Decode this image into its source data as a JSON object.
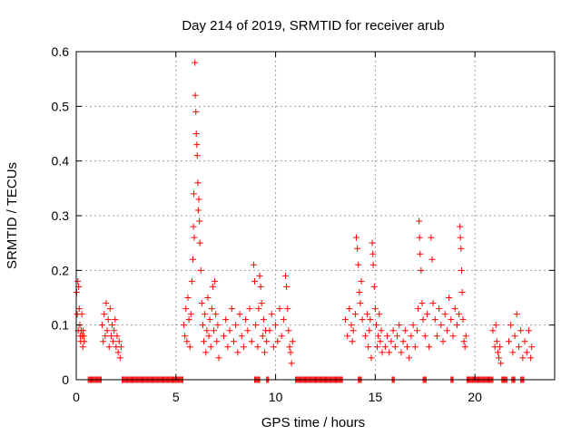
{
  "chart_data": {
    "type": "scatter",
    "title": "Day 214 of 2019, SRMTID for receiver arub",
    "xlabel": "GPS time / hours",
    "ylabel": "SRMTID / TECUs",
    "xlim": [
      0,
      24
    ],
    "ylim": [
      0,
      0.6
    ],
    "x_ticks": [
      {
        "value": 0,
        "label": "0"
      },
      {
        "value": 5,
        "label": "5"
      },
      {
        "value": 10,
        "label": "10"
      },
      {
        "value": 15,
        "label": "15"
      },
      {
        "value": 20,
        "label": "20"
      }
    ],
    "y_ticks": [
      {
        "value": 0,
        "label": "0"
      },
      {
        "value": 0.1,
        "label": "0.1"
      },
      {
        "value": 0.2,
        "label": "0.2"
      },
      {
        "value": 0.3,
        "label": "0.3"
      },
      {
        "value": 0.4,
        "label": "0.4"
      },
      {
        "value": 0.5,
        "label": "0.5"
      },
      {
        "value": 0.6,
        "label": "0.6"
      }
    ],
    "grid": true,
    "marker": "+",
    "color": "#ff0000",
    "series": [
      {
        "name": "SRMTID",
        "points": [
          [
            0.02,
            0.16
          ],
          [
            0.05,
            0.12
          ],
          [
            0.08,
            0.18
          ],
          [
            0.1,
            0.09
          ],
          [
            0.12,
            0.17
          ],
          [
            0.15,
            0.13
          ],
          [
            0.18,
            0.1
          ],
          [
            0.2,
            0.08
          ],
          [
            0.22,
            0.07
          ],
          [
            0.25,
            0.09
          ],
          [
            0.28,
            0.12
          ],
          [
            0.3,
            0.08
          ],
          [
            0.33,
            0.06
          ],
          [
            0.35,
            0.09
          ],
          [
            0.38,
            0.08
          ],
          [
            0.4,
            0.07
          ],
          [
            1.3,
            0.1
          ],
          [
            1.35,
            0.07
          ],
          [
            1.4,
            0.12
          ],
          [
            1.45,
            0.08
          ],
          [
            1.5,
            0.14
          ],
          [
            1.55,
            0.09
          ],
          [
            1.6,
            0.11
          ],
          [
            1.65,
            0.06
          ],
          [
            1.7,
            0.13
          ],
          [
            1.75,
            0.08
          ],
          [
            1.8,
            0.1
          ],
          [
            1.85,
            0.07
          ],
          [
            1.9,
            0.09
          ],
          [
            1.95,
            0.11
          ],
          [
            2.0,
            0.06
          ],
          [
            2.05,
            0.08
          ],
          [
            2.1,
            0.05
          ],
          [
            2.15,
            0.07
          ],
          [
            2.2,
            0.04
          ],
          [
            2.25,
            0.06
          ],
          [
            5.4,
            0.1
          ],
          [
            5.45,
            0.08
          ],
          [
            5.5,
            0.13
          ],
          [
            5.55,
            0.07
          ],
          [
            5.6,
            0.15
          ],
          [
            5.65,
            0.11
          ],
          [
            5.7,
            0.06
          ],
          [
            5.75,
            0.12
          ],
          [
            5.8,
            0.18
          ],
          [
            5.85,
            0.22
          ],
          [
            5.88,
            0.28
          ],
          [
            5.9,
            0.34
          ],
          [
            5.92,
            0.26
          ],
          [
            5.95,
            0.58
          ],
          [
            5.97,
            0.52
          ],
          [
            6.0,
            0.49
          ],
          [
            6.02,
            0.45
          ],
          [
            6.05,
            0.43
          ],
          [
            6.07,
            0.41
          ],
          [
            6.1,
            0.36
          ],
          [
            6.12,
            0.31
          ],
          [
            6.15,
            0.33
          ],
          [
            6.18,
            0.29
          ],
          [
            6.2,
            0.25
          ],
          [
            6.25,
            0.2
          ],
          [
            6.3,
            0.14
          ],
          [
            6.35,
            0.1
          ],
          [
            6.4,
            0.07
          ],
          [
            6.45,
            0.12
          ],
          [
            6.5,
            0.05
          ],
          [
            6.55,
            0.09
          ],
          [
            6.6,
            0.15
          ],
          [
            6.65,
            0.08
          ],
          [
            6.7,
            0.11
          ],
          [
            6.75,
            0.06
          ],
          [
            6.8,
            0.13
          ],
          [
            6.85,
            0.17
          ],
          [
            6.9,
            0.09
          ],
          [
            6.95,
            0.18
          ],
          [
            7.0,
            0.12
          ],
          [
            7.05,
            0.07
          ],
          [
            7.1,
            0.1
          ],
          [
            7.15,
            0.04
          ],
          [
            7.4,
            0.08
          ],
          [
            7.5,
            0.11
          ],
          [
            7.6,
            0.06
          ],
          [
            7.7,
            0.09
          ],
          [
            7.8,
            0.13
          ],
          [
            7.9,
            0.07
          ],
          [
            8.0,
            0.1
          ],
          [
            8.1,
            0.05
          ],
          [
            8.2,
            0.12
          ],
          [
            8.3,
            0.08
          ],
          [
            8.4,
            0.06
          ],
          [
            8.5,
            0.11
          ],
          [
            8.6,
            0.09
          ],
          [
            8.7,
            0.13
          ],
          [
            8.8,
            0.07
          ],
          [
            8.9,
            0.21
          ],
          [
            8.95,
            0.18
          ],
          [
            9.0,
            0.1
          ],
          [
            9.1,
            0.06
          ],
          [
            9.15,
            0.13
          ],
          [
            9.2,
            0.19
          ],
          [
            9.25,
            0.17
          ],
          [
            9.3,
            0.14
          ],
          [
            9.35,
            0.08
          ],
          [
            9.4,
            0.11
          ],
          [
            9.45,
            0.05
          ],
          [
            9.5,
            0.09
          ],
          [
            9.55,
            0.07
          ],
          [
            9.7,
            0.09
          ],
          [
            9.8,
            0.12
          ],
          [
            9.9,
            0.06
          ],
          [
            10.0,
            0.1
          ],
          [
            10.1,
            0.07
          ],
          [
            10.2,
            0.13
          ],
          [
            10.3,
            0.08
          ],
          [
            10.4,
            0.11
          ],
          [
            10.5,
            0.19
          ],
          [
            10.55,
            0.17
          ],
          [
            10.6,
            0.13
          ],
          [
            10.65,
            0.09
          ],
          [
            10.7,
            0.06
          ],
          [
            10.75,
            0.05
          ],
          [
            10.8,
            0.03
          ],
          [
            10.85,
            0.07
          ],
          [
            13.5,
            0.11
          ],
          [
            13.6,
            0.08
          ],
          [
            13.7,
            0.13
          ],
          [
            13.8,
            0.1
          ],
          [
            13.85,
            0.07
          ],
          [
            13.9,
            0.09
          ],
          [
            14.0,
            0.12
          ],
          [
            14.05,
            0.26
          ],
          [
            14.1,
            0.24
          ],
          [
            14.15,
            0.21
          ],
          [
            14.2,
            0.16
          ],
          [
            14.25,
            0.14
          ],
          [
            14.3,
            0.18
          ],
          [
            14.35,
            0.11
          ],
          [
            14.5,
            0.08
          ],
          [
            14.6,
            0.12
          ],
          [
            14.65,
            0.06
          ],
          [
            14.7,
            0.09
          ],
          [
            14.75,
            0.11
          ],
          [
            14.8,
            0.04
          ],
          [
            14.85,
            0.25
          ],
          [
            14.88,
            0.23
          ],
          [
            14.9,
            0.21
          ],
          [
            14.95,
            0.17
          ],
          [
            15.0,
            0.13
          ],
          [
            15.05,
            0.1
          ],
          [
            15.1,
            0.06
          ],
          [
            15.15,
            0.08
          ],
          [
            15.2,
            0.12
          ],
          [
            15.25,
            0.07
          ],
          [
            15.3,
            0.09
          ],
          [
            15.35,
            0.05
          ],
          [
            15.5,
            0.06
          ],
          [
            15.6,
            0.08
          ],
          [
            15.7,
            0.05
          ],
          [
            15.8,
            0.07
          ],
          [
            15.9,
            0.09
          ],
          [
            16.0,
            0.06
          ],
          [
            16.1,
            0.08
          ],
          [
            16.2,
            0.1
          ],
          [
            16.3,
            0.05
          ],
          [
            16.4,
            0.07
          ],
          [
            16.5,
            0.09
          ],
          [
            16.6,
            0.06
          ],
          [
            16.7,
            0.04
          ],
          [
            16.8,
            0.08
          ],
          [
            16.9,
            0.1
          ],
          [
            17.0,
            0.06
          ],
          [
            17.1,
            0.09
          ],
          [
            17.15,
            0.13
          ],
          [
            17.2,
            0.29
          ],
          [
            17.22,
            0.26
          ],
          [
            17.25,
            0.23
          ],
          [
            17.3,
            0.2
          ],
          [
            17.35,
            0.14
          ],
          [
            17.4,
            0.11
          ],
          [
            17.5,
            0.08
          ],
          [
            17.6,
            0.12
          ],
          [
            17.7,
            0.06
          ],
          [
            17.8,
            0.26
          ],
          [
            17.85,
            0.22
          ],
          [
            17.9,
            0.14
          ],
          [
            18.0,
            0.11
          ],
          [
            18.1,
            0.08
          ],
          [
            18.2,
            0.13
          ],
          [
            18.3,
            0.1
          ],
          [
            18.4,
            0.07
          ],
          [
            18.5,
            0.12
          ],
          [
            18.6,
            0.09
          ],
          [
            18.7,
            0.15
          ],
          [
            18.8,
            0.11
          ],
          [
            18.9,
            0.08
          ],
          [
            19.0,
            0.13
          ],
          [
            19.1,
            0.1
          ],
          [
            19.2,
            0.12
          ],
          [
            19.25,
            0.28
          ],
          [
            19.27,
            0.26
          ],
          [
            19.3,
            0.24
          ],
          [
            19.33,
            0.2
          ],
          [
            19.36,
            0.16
          ],
          [
            19.4,
            0.11
          ],
          [
            19.45,
            0.07
          ],
          [
            19.5,
            0.06
          ],
          [
            19.55,
            0.08
          ],
          [
            20.9,
            0.09
          ],
          [
            21.0,
            0.06
          ],
          [
            21.05,
            0.1
          ],
          [
            21.1,
            0.07
          ],
          [
            21.15,
            0.05
          ],
          [
            21.2,
            0.04
          ],
          [
            21.25,
            0.06
          ],
          [
            21.3,
            0.03
          ],
          [
            21.7,
            0.07
          ],
          [
            21.8,
            0.1
          ],
          [
            21.9,
            0.05
          ],
          [
            22.0,
            0.08
          ],
          [
            22.1,
            0.12
          ],
          [
            22.2,
            0.06
          ],
          [
            22.3,
            0.09
          ],
          [
            22.4,
            0.04
          ],
          [
            22.5,
            0.07
          ],
          [
            22.6,
            0.05
          ],
          [
            22.7,
            0.09
          ],
          [
            22.8,
            0.04
          ],
          [
            22.85,
            0.06
          ]
        ],
        "zero_segments": [
          [
            0.6,
            1.25
          ],
          [
            2.3,
            5.35
          ],
          [
            8.95,
            9.2
          ],
          [
            9.55,
            9.65
          ],
          [
            11.0,
            13.35
          ],
          [
            14.15,
            14.3
          ],
          [
            15.85,
            15.95
          ],
          [
            17.4,
            17.55
          ],
          [
            18.8,
            18.9
          ],
          [
            19.6,
            20.9
          ],
          [
            21.35,
            21.6
          ],
          [
            21.85,
            22.0
          ],
          [
            22.3,
            22.45
          ]
        ]
      }
    ]
  }
}
